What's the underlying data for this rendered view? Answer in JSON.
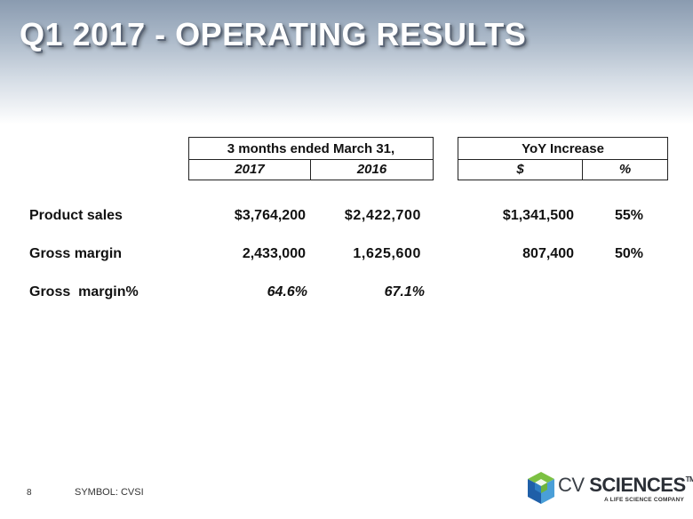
{
  "title": "Q1 2017 - OPERATING RESULTS",
  "table": {
    "period_header": "3 months ended March 31,",
    "col_2017": "2017",
    "col_2016": "2016",
    "yoy_header": "YoY Increase",
    "col_dollar": "$",
    "col_pct": "%",
    "rows": [
      {
        "label": "Product sales",
        "v2017": "$3,764,200",
        "v2016": "$2,422,700",
        "yoy_dollar": "$1,341,500",
        "yoy_pct": "55%"
      },
      {
        "label": "Gross margin",
        "v2017": "2,433,000",
        "v2016": "1,625,600",
        "yoy_dollar": "807,400",
        "yoy_pct": "50%"
      },
      {
        "label": "Gross  margin%",
        "v2017": "64.6%",
        "v2016": "67.1%",
        "yoy_dollar": "",
        "yoy_pct": ""
      }
    ]
  },
  "footer": {
    "page_number": "8",
    "symbol": "SYMBOL: CVSI"
  },
  "logo": {
    "cv": "CV",
    "sciences": "SCIENCES",
    "tm": "TM",
    "tagline": "A LIFE SCIENCE COMPANY"
  },
  "colors": {
    "title_text": "#ffffff",
    "header_gradient_top": "#8a9bb0",
    "logo_green": "#6cb33f",
    "logo_blue": "#1f5fa8"
  }
}
